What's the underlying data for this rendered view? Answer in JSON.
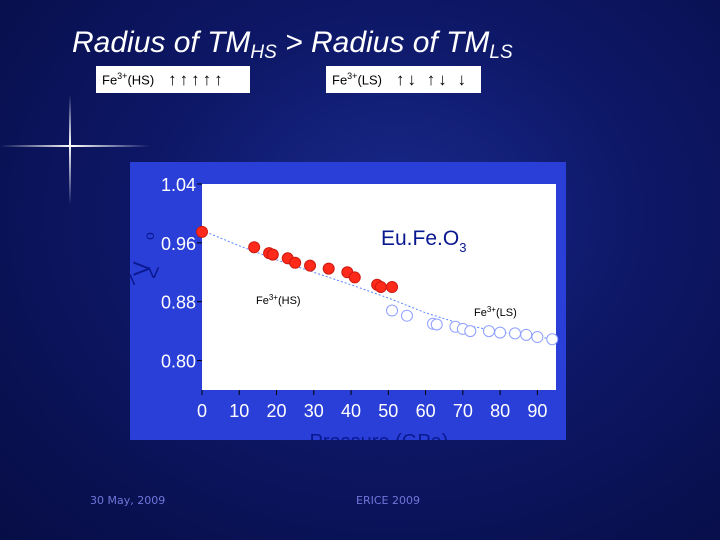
{
  "slide": {
    "title_main": "Radius of TM",
    "title_sub1": "HS",
    "title_mid": " > Radius of TM",
    "title_sub2": "LS",
    "footer_date": "30 May, 2009",
    "footer_event": "ERICE 2009"
  },
  "spin_boxes": {
    "hs": {
      "ion": "Fe",
      "charge": "3+",
      "state": "(HS)",
      "arrows": "↑↑↑↑↑"
    },
    "ls": {
      "ion": "Fe",
      "charge": "3+",
      "state": "(LS)",
      "arrows": "↑↓ ↑↓ ↓"
    }
  },
  "colors": {
    "hs_points": "#ff2a1a",
    "ls_points": "#ffffff",
    "fit_line": "#5a86ff",
    "axis_text": "#ffffff",
    "axis_title": "#0a1890",
    "plot_bg": "#ffffff"
  },
  "chart_data": {
    "type": "scatter",
    "title": "",
    "compound_label": {
      "base": "Eu.Fe.O",
      "sub": "3"
    },
    "xlabel": "Pressure (GPa)",
    "ylabel_chars": [
      ">",
      "V",
      "<",
      "o"
    ],
    "xlim": [
      0,
      95
    ],
    "ylim": [
      0.76,
      1.04
    ],
    "xticks": [
      0,
      10,
      20,
      30,
      40,
      50,
      60,
      70,
      80,
      90
    ],
    "yticks": [
      0.8,
      0.88,
      0.96,
      1.04
    ],
    "ytick_labels": [
      "0.80",
      "0.88",
      "0.96",
      "1.04"
    ],
    "series": [
      {
        "label": "Fe3+(HS)",
        "x": [
          0,
          14,
          18,
          19,
          23,
          25,
          29,
          34,
          39,
          41,
          47,
          48,
          51
        ],
        "y": [
          0.975,
          0.954,
          0.946,
          0.944,
          0.939,
          0.933,
          0.929,
          0.925,
          0.92,
          0.913,
          0.903,
          0.9,
          0.9
        ]
      },
      {
        "label": "Fe3+(LS)",
        "x": [
          51,
          55,
          62,
          63,
          68,
          70,
          72,
          77,
          80,
          84,
          87,
          90,
          94
        ],
        "y": [
          0.868,
          0.861,
          0.85,
          0.849,
          0.846,
          0.843,
          0.84,
          0.84,
          0.838,
          0.837,
          0.835,
          0.832,
          0.829
        ]
      }
    ],
    "fit_curve": {
      "x": [
        0,
        10,
        20,
        30,
        40,
        50,
        60,
        70,
        80,
        90,
        95
      ],
      "y": [
        0.977,
        0.956,
        0.937,
        0.92,
        0.903,
        0.885,
        0.865,
        0.849,
        0.839,
        0.832,
        0.829
      ]
    },
    "annotations": {
      "hs": {
        "ion": "Fe",
        "charge": "3+",
        "state": "(HS)"
      },
      "ls": {
        "ion": "Fe",
        "charge": "3+",
        "state": "(LS)"
      }
    }
  }
}
